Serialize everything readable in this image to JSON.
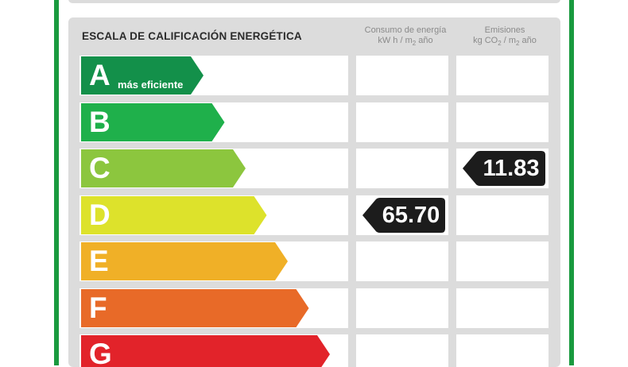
{
  "panel": {
    "title": "ESCALA DE CALIFICACIÓN ENERGÉTICA",
    "energy_header_line1": "Consumo de energía",
    "energy_header_line2_pre": "kW h / m",
    "energy_header_line2_sub": "2",
    "energy_header_line2_post": " año",
    "emission_header_line1": "Emisiones",
    "emission_header_line2_pre": "kg CO",
    "emission_header_line2_sub1": "2",
    "emission_header_line2_mid": " / m",
    "emission_header_line2_sub2": "2",
    "emission_header_line2_post": " año"
  },
  "ratings": [
    {
      "letter": "A",
      "subtitle": "más eficiente",
      "color": "#13904a"
    },
    {
      "letter": "B",
      "subtitle": "",
      "color": "#1fb04b"
    },
    {
      "letter": "C",
      "subtitle": "",
      "color": "#8cc63e"
    },
    {
      "letter": "D",
      "subtitle": "",
      "color": "#dde22b"
    },
    {
      "letter": "E",
      "subtitle": "",
      "color": "#f0b027"
    },
    {
      "letter": "F",
      "subtitle": "",
      "color": "#e86a28"
    },
    {
      "letter": "G",
      "subtitle": "",
      "color": "#e2232a"
    }
  ],
  "energy_consumption": {
    "value": "65.70",
    "rating": "D"
  },
  "emissions": {
    "value": "11.83",
    "rating": "C"
  },
  "colors": {
    "frame_green": "#1a9a3f",
    "panel_gray": "#dcdcdc",
    "tag_black": "#1c1c1c"
  }
}
